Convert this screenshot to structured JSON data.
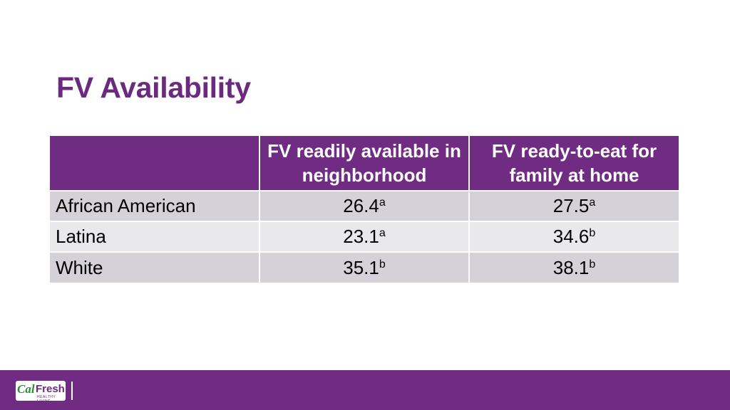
{
  "slide": {
    "title": "FV Availability"
  },
  "table": {
    "headers": [
      "",
      "FV readily available in neighborhood",
      "FV ready-to-eat for family at home"
    ],
    "rows": [
      {
        "label": "African American",
        "col1": {
          "value": "26.4",
          "sup": "a"
        },
        "col2": {
          "value": "27.5",
          "sup": "a"
        }
      },
      {
        "label": "Latina",
        "col1": {
          "value": "23.1",
          "sup": "a"
        },
        "col2": {
          "value": "34.6",
          "sup": "b"
        }
      },
      {
        "label": "White",
        "col1": {
          "value": "35.1",
          "sup": "b"
        },
        "col2": {
          "value": "38.1",
          "sup": "b"
        }
      }
    ]
  },
  "footer": {
    "logo": {
      "cal": "Cal",
      "fresh": "Fresh",
      "tagline": "HEALTHY LIVING"
    }
  },
  "colors": {
    "brand_purple": "#702b82",
    "title_purple": "#6b2a7e",
    "row_dark": "#d5d1d9",
    "row_light": "#e9e8eb",
    "logo_green": "#2e8b3a"
  }
}
